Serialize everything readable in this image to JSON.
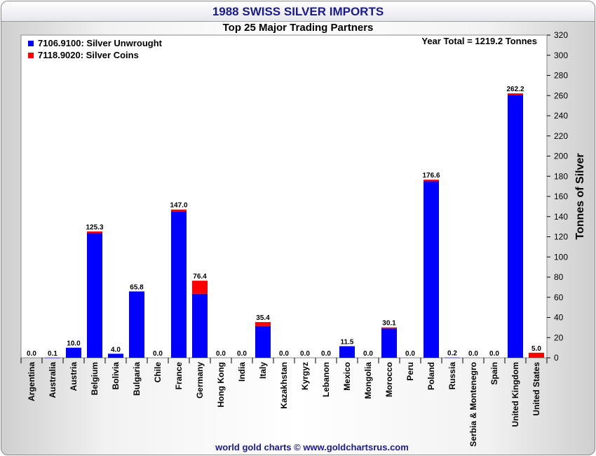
{
  "header": {
    "title": "1988 SWISS SILVER IMPORTS",
    "subtitle": "Top 25 Major Trading Partners"
  },
  "footer": {
    "credit": "world gold charts © www.goldchartsrus.com"
  },
  "annotation": {
    "year_total": "Year Total = 1219.2 Tonnes"
  },
  "legend": [
    {
      "label": "7106.9100: Silver Unwrought",
      "color": "#0000ff"
    },
    {
      "label": "7118.9020: Silver Coins",
      "color": "#ff0000"
    }
  ],
  "chart_data": {
    "type": "bar",
    "stacked": true,
    "title": "1988 SWISS SILVER IMPORTS",
    "subtitle": "Top 25 Major Trading Partners",
    "xlabel": "",
    "ylabel": "Tonnes of Silver",
    "ylim": [
      0,
      320
    ],
    "ytick_step": 20,
    "grid": false,
    "legend_position": "top-left",
    "categories": [
      "Argentina",
      "Australia",
      "Austria",
      "Belgium",
      "Bolivia",
      "Bulgaria",
      "Chile",
      "France",
      "Germany",
      "Hong Kong",
      "India",
      "Italy",
      "Kazakhstan",
      "Kyrgyz",
      "Lebanon",
      "Mexico",
      "Mongolia",
      "Morocco",
      "Peru",
      "Poland",
      "Russia",
      "Serbia & Montenegro",
      "Spain",
      "United Kingdom",
      "United States"
    ],
    "series": [
      {
        "name": "7106.9100: Silver Unwrought",
        "color": "#0000ff",
        "values": [
          0,
          0.1,
          10.0,
          123.5,
          4.0,
          65.8,
          0,
          145.0,
          63.5,
          0,
          0,
          31.5,
          0,
          0,
          0,
          11.5,
          0,
          29.0,
          0,
          175.0,
          0.2,
          0,
          0,
          260.5,
          0
        ]
      },
      {
        "name": "7118.9020: Silver Coins",
        "color": "#ff0000",
        "values": [
          0,
          0,
          0,
          1.8,
          0,
          0,
          0,
          2.0,
          12.9,
          0,
          0,
          3.9,
          0,
          0,
          0,
          0,
          0,
          1.1,
          0,
          1.6,
          0,
          0,
          0,
          1.7,
          5.0
        ]
      }
    ],
    "totals": [
      "0.0",
      "0.1",
      "10.0",
      "125.3",
      "4.0",
      "65.8",
      "0.0",
      "147.0",
      "76.4",
      "0.0",
      "0.0",
      "35.4",
      "0.0",
      "0.0",
      "0.0",
      "11.5",
      "0.0",
      "30.1",
      "0.0",
      "176.6",
      "0.2",
      "0.0",
      "0.0",
      "262.2",
      "5.0"
    ]
  }
}
